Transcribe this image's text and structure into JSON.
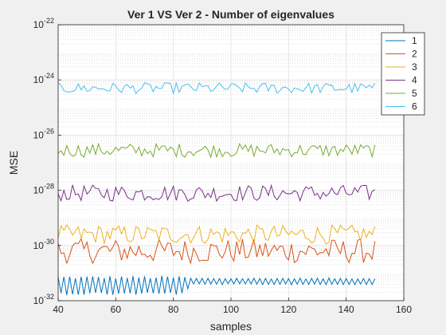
{
  "chart_data": {
    "type": "line",
    "title": "Ver 1 VS Ver 2 - Number of eigenvalues",
    "xlabel": "samples",
    "ylabel": "MSE",
    "xlim": [
      40,
      160
    ],
    "ylim": [
      1e-32,
      1e-22
    ],
    "yscale": "log",
    "grid": true,
    "minor_grid": true,
    "legend_position": "top-right",
    "x_ticks": [
      40,
      60,
      80,
      100,
      120,
      140,
      160
    ],
    "y_tick_exponents": [
      -32,
      -30,
      -28,
      -26,
      -24,
      -22
    ],
    "y_tick_base": "10",
    "x_start": 40,
    "x_end": 150,
    "series": [
      {
        "name": "1",
        "color": "#0072BD",
        "log10_center": -31.45,
        "log10_amplitude": 0.35
      },
      {
        "name": "2",
        "color": "#D95319",
        "log10_center": -30.2,
        "log10_amplitude": 0.45
      },
      {
        "name": "3",
        "color": "#EDB120",
        "log10_center": -29.6,
        "log10_amplitude": 0.35
      },
      {
        "name": "4",
        "color": "#7E2F8E",
        "log10_center": -28.1,
        "log10_amplitude": 0.3
      },
      {
        "name": "5",
        "color": "#77AC30",
        "log10_center": -26.55,
        "log10_amplitude": 0.25
      },
      {
        "name": "6",
        "color": "#4DBEEE",
        "log10_center": -24.3,
        "log10_amplitude": 0.2
      }
    ]
  }
}
